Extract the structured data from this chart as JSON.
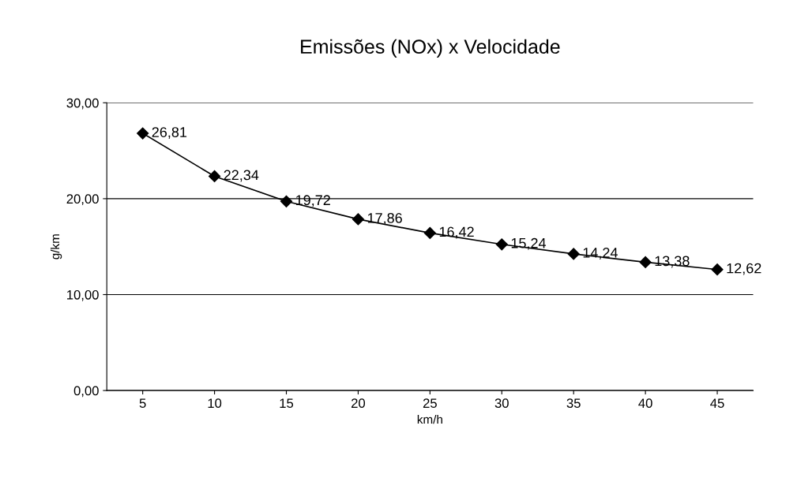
{
  "chart_data": {
    "type": "line",
    "title": "Emissões (NOx) x Velocidade",
    "xlabel": "km/h",
    "ylabel": "g/km",
    "categories": [
      "5",
      "10",
      "15",
      "20",
      "25",
      "30",
      "35",
      "40",
      "45"
    ],
    "series": [
      {
        "color": "#000000",
        "values": [
          26.81,
          22.34,
          19.72,
          17.86,
          16.42,
          15.24,
          14.24,
          13.38,
          12.62
        ],
        "value_labels": [
          "26,81",
          "22,34",
          "19,72",
          "17,86",
          "16,42",
          "15,24",
          "14,24",
          "13,38",
          "12,62"
        ]
      }
    ],
    "ylim": [
      0,
      30
    ],
    "yticks": [
      {
        "value": 0,
        "label": "0,00"
      },
      {
        "value": 10,
        "label": "10,00"
      },
      {
        "value": 20,
        "label": "20,00"
      },
      {
        "value": 30,
        "label": "30,00"
      }
    ],
    "grid": "y",
    "marker": "diamond",
    "line_style": "solid",
    "legend": false
  }
}
